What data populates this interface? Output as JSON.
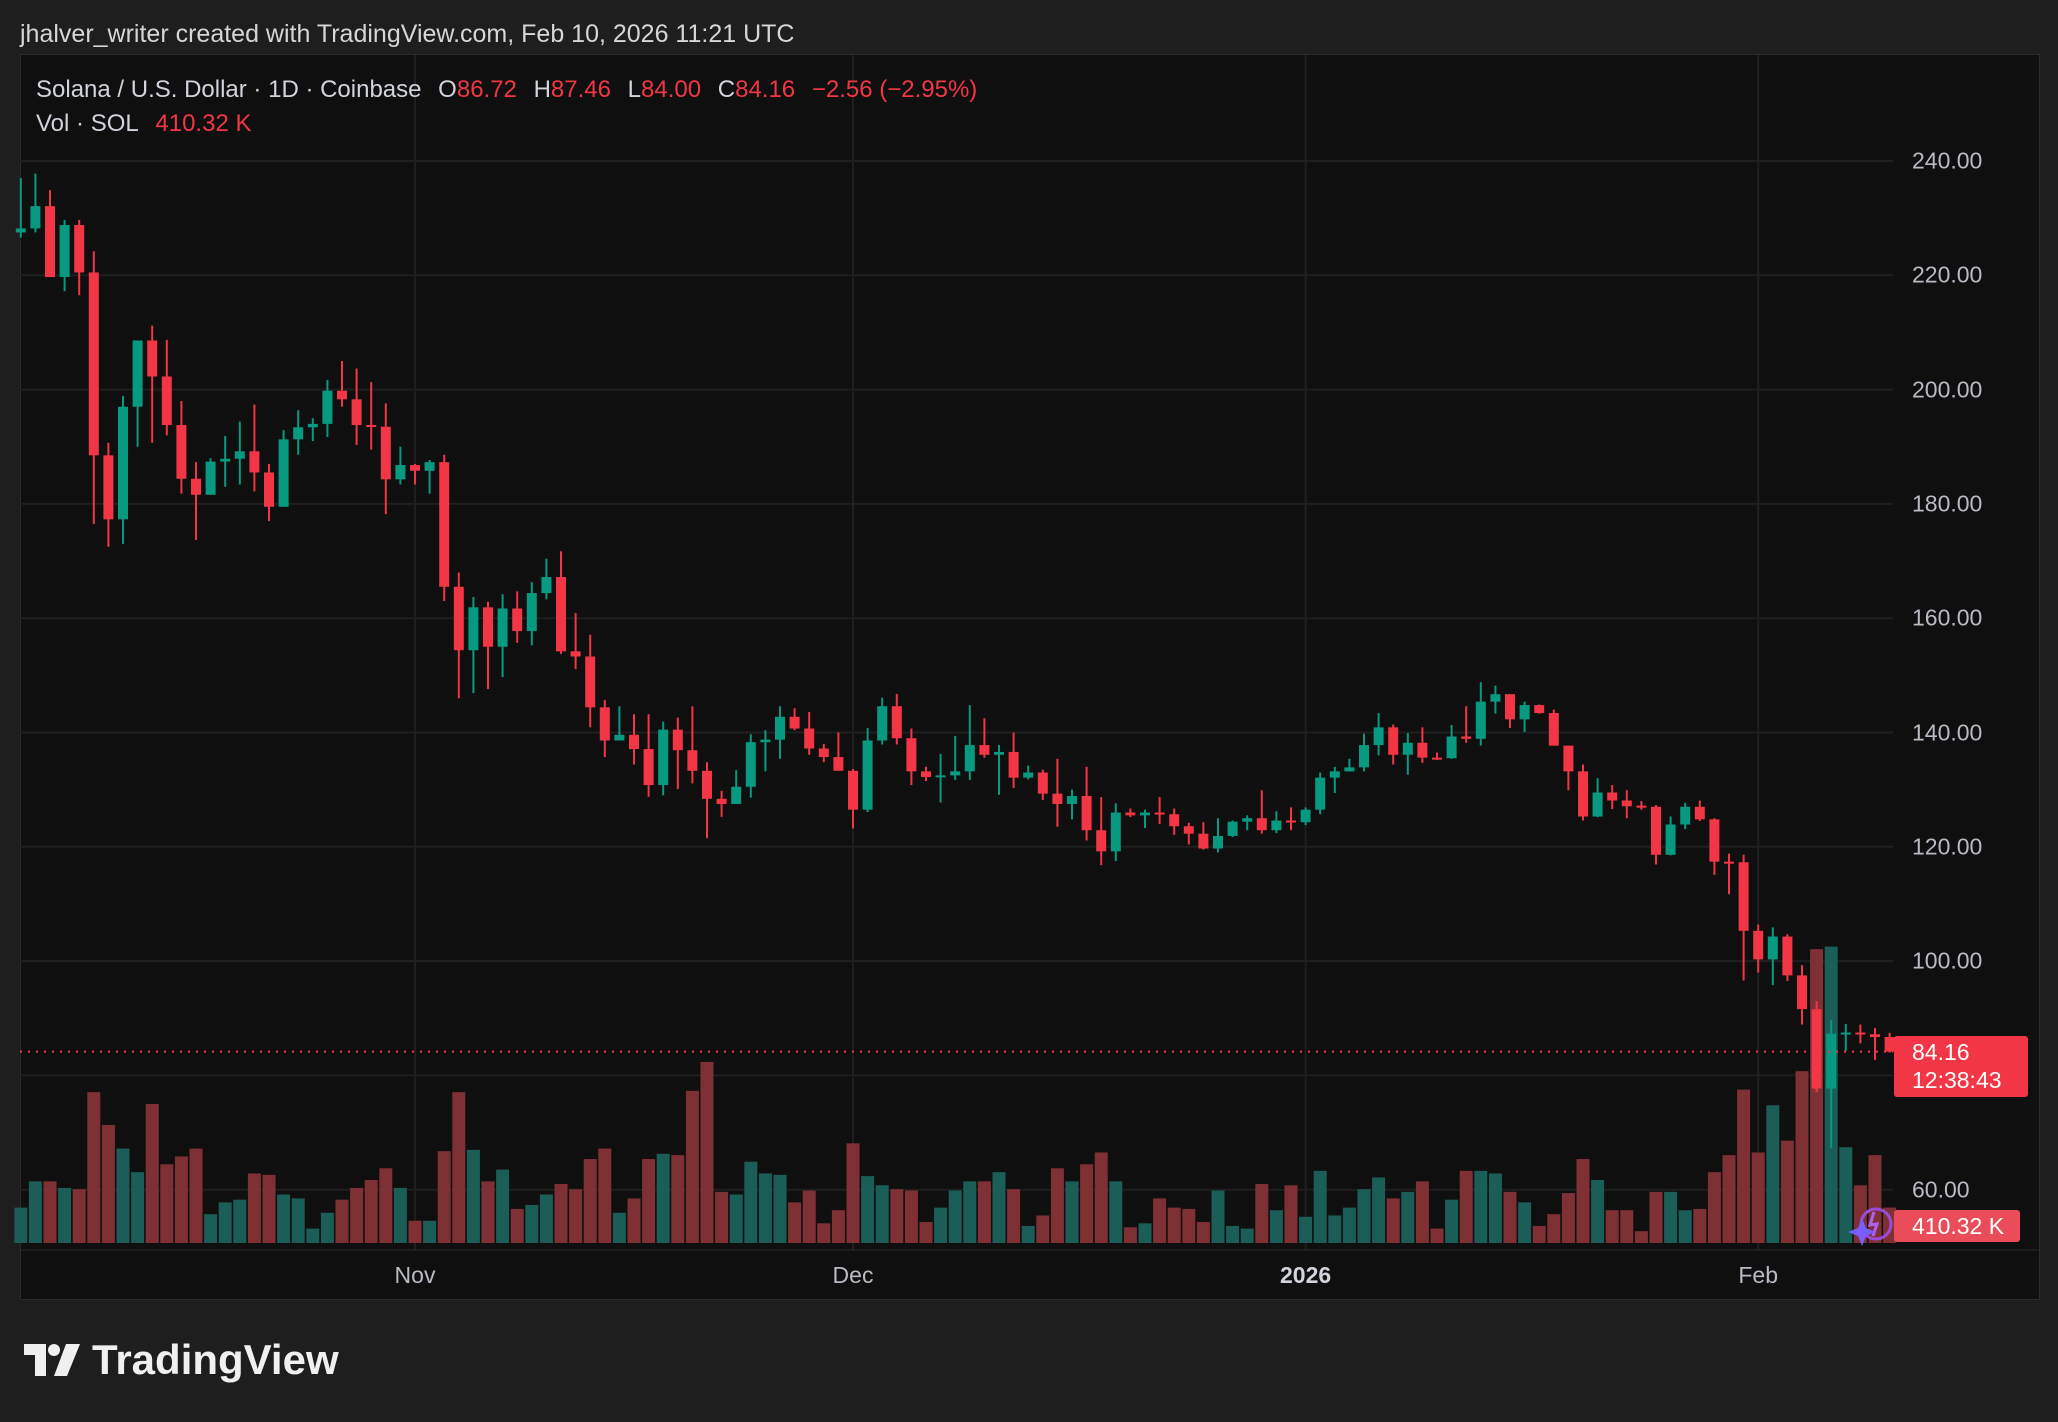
{
  "caption": "jhalver_writer created with TradingView.com, Feb 10, 2026 11:21 UTC",
  "legend": {
    "symbol": "Solana / U.S. Dollar · 1D · Coinbase",
    "open_label": "O",
    "open": "86.72",
    "high_label": "H",
    "high": "87.46",
    "low_label": "L",
    "low": "84.00",
    "close_label": "C",
    "close": "84.16",
    "change": "−2.56 (−2.95%)",
    "vol_label": "Vol · SOL",
    "vol": "410.32 K"
  },
  "price_box": {
    "price": "84.16",
    "countdown": "12:38:43"
  },
  "volume_box": {
    "value": "410.32 K"
  },
  "logo": {
    "text": "TradingView"
  },
  "colors": {
    "up": "#089981",
    "down": "#f23645",
    "vol_up": "#1b5d57",
    "vol_down": "#7f3035",
    "background": "#0f0f0f"
  },
  "chart_data": {
    "type": "candlestick",
    "title": "Solana / U.S. Dollar · 1D · Coinbase",
    "y_ticks": [
      "240.00",
      "220.00",
      "200.00",
      "180.00",
      "160.00",
      "140.00",
      "120.00",
      "100.00",
      "60.00"
    ],
    "grid_prices": [
      240,
      220,
      200,
      180,
      160,
      140,
      120,
      100,
      80,
      60
    ],
    "ylim": [
      60,
      240
    ],
    "x_ticks": [
      {
        "label": "Nov",
        "date": "2025-11-01",
        "bold": false
      },
      {
        "label": "Dec",
        "date": "2025-12-01",
        "bold": false
      },
      {
        "label": "2026",
        "date": "2026-01-01",
        "bold": true
      },
      {
        "label": "Feb",
        "date": "2026-02-01",
        "bold": false
      }
    ],
    "grid": true,
    "last_price": 84.16,
    "fields": [
      "date",
      "open",
      "high",
      "low",
      "close",
      "volume_k"
    ],
    "candles": [
      [
        "2025-10-05",
        227.5,
        237,
        226.6,
        228.2,
        410
      ],
      [
        "2025-10-06",
        228.2,
        237.8,
        227.5,
        232.1,
        714
      ],
      [
        "2025-10-07",
        232.1,
        234.9,
        219.7,
        219.7,
        714
      ],
      [
        "2025-10-08",
        219.7,
        229.7,
        217.2,
        228.8,
        638
      ],
      [
        "2025-10-09",
        228.8,
        229.7,
        216.5,
        220.5,
        623
      ],
      [
        "2025-10-10",
        220.5,
        224.2,
        176.5,
        188.5,
        1748
      ],
      [
        "2025-10-11",
        188.5,
        190.7,
        172.5,
        177.3,
        1368
      ],
      [
        "2025-10-12",
        177.3,
        198.9,
        173,
        197,
        1094
      ],
      [
        "2025-10-13",
        197,
        208.6,
        190,
        208.6,
        821
      ],
      [
        "2025-10-14",
        208.6,
        211.2,
        190.7,
        202.3,
        1611
      ],
      [
        "2025-10-15",
        202.3,
        208.7,
        192,
        193.8,
        912
      ],
      [
        "2025-10-16",
        193.8,
        198,
        181.8,
        184.4,
        1003
      ],
      [
        "2025-10-17",
        184.4,
        187.3,
        173.7,
        181.6,
        1094
      ],
      [
        "2025-10-18",
        181.6,
        188,
        181.6,
        187.4,
        334
      ],
      [
        "2025-10-19",
        187.4,
        191.9,
        183,
        187.9,
        471
      ],
      [
        "2025-10-20",
        187.9,
        194.4,
        183.4,
        189.2,
        502
      ],
      [
        "2025-10-21",
        189.2,
        197.4,
        182.2,
        185.5,
        806
      ],
      [
        "2025-10-22",
        185.5,
        187,
        177,
        179.5,
        790
      ],
      [
        "2025-10-23",
        179.5,
        192.9,
        179.5,
        191.3,
        562
      ],
      [
        "2025-10-24",
        191.3,
        196.4,
        188.6,
        193.4,
        517
      ],
      [
        "2025-10-25",
        193.4,
        195,
        191,
        194,
        167
      ],
      [
        "2025-10-26",
        194,
        201.7,
        191.7,
        199.8,
        350
      ],
      [
        "2025-10-27",
        199.8,
        205,
        197,
        198.3,
        502
      ],
      [
        "2025-10-28",
        198.3,
        203.7,
        190.3,
        193.8,
        638
      ],
      [
        "2025-10-29",
        193.8,
        201.3,
        189.5,
        193.5,
        730
      ],
      [
        "2025-10-30",
        193.5,
        197.6,
        178.2,
        184.3,
        866
      ],
      [
        "2025-10-31",
        184.3,
        190,
        183.4,
        186.8,
        638
      ],
      [
        "2025-11-01",
        186.8,
        187,
        183.4,
        185.8,
        258
      ],
      [
        "2025-11-02",
        185.8,
        187.7,
        181.8,
        187.3,
        258
      ],
      [
        "2025-11-03",
        187.3,
        188.6,
        163,
        165.5,
        1064
      ],
      [
        "2025-11-04",
        165.5,
        168,
        146,
        154.4,
        1748
      ],
      [
        "2025-11-05",
        154.4,
        163.7,
        146.9,
        161.9,
        1079
      ],
      [
        "2025-11-06",
        161.9,
        162.9,
        147.6,
        155,
        714
      ],
      [
        "2025-11-07",
        155,
        164.2,
        149.7,
        161.7,
        851
      ],
      [
        "2025-11-08",
        161.7,
        164.7,
        155.7,
        157.75,
        395
      ],
      [
        "2025-11-09",
        157.75,
        166.3,
        155.25,
        164.4,
        441
      ],
      [
        "2025-11-10",
        164.4,
        170.4,
        163.3,
        167.2,
        562
      ],
      [
        "2025-11-11",
        167.2,
        171.7,
        153.75,
        154.2,
        684
      ],
      [
        "2025-11-12",
        154.2,
        160.9,
        151.1,
        153.3,
        623
      ],
      [
        "2025-11-13",
        153.3,
        157.1,
        140.9,
        144.4,
        973
      ],
      [
        "2025-11-14",
        144.4,
        145.7,
        135.7,
        138.6,
        1094
      ],
      [
        "2025-11-15",
        138.6,
        144.6,
        138.6,
        139.6,
        350
      ],
      [
        "2025-11-16",
        139.6,
        143.2,
        134.4,
        137.1,
        517
      ],
      [
        "2025-11-17",
        137.1,
        143.2,
        128.75,
        130.8,
        973
      ],
      [
        "2025-11-18",
        130.8,
        141.9,
        129,
        140.5,
        1034
      ],
      [
        "2025-11-19",
        140.5,
        142.6,
        130.1,
        136.9,
        1018
      ],
      [
        "2025-11-20",
        136.9,
        144.6,
        131.1,
        133.3,
        1763
      ],
      [
        "2025-11-21",
        133.3,
        134.8,
        121.5,
        128.4,
        2098
      ],
      [
        "2025-11-22",
        128.4,
        129.8,
        125.25,
        127.5,
        593
      ],
      [
        "2025-11-23",
        127.5,
        133.4,
        127.5,
        130.5,
        562
      ],
      [
        "2025-11-24",
        130.5,
        139.7,
        128.6,
        138.3,
        942
      ],
      [
        "2025-11-25",
        138.3,
        140.4,
        133.2,
        138.75,
        806
      ],
      [
        "2025-11-26",
        138.75,
        144.6,
        135.4,
        142.75,
        790
      ],
      [
        "2025-11-27",
        142.75,
        144.25,
        140.4,
        140.7,
        471
      ],
      [
        "2025-11-28",
        140.7,
        143.6,
        136.1,
        137.2,
        608
      ],
      [
        "2025-11-29",
        137.2,
        138,
        134.8,
        135.7,
        228
      ],
      [
        "2025-11-30",
        135.7,
        140,
        133.3,
        133.3,
        380
      ],
      [
        "2025-12-01",
        133.3,
        133.6,
        123.2,
        126.5,
        1155
      ],
      [
        "2025-12-02",
        126.5,
        140.8,
        126.1,
        138.6,
        775
      ],
      [
        "2025-12-03",
        138.6,
        146.1,
        137.9,
        144.6,
        669
      ],
      [
        "2025-12-04",
        144.6,
        146.75,
        137.9,
        139,
        623
      ],
      [
        "2025-12-05",
        139,
        140.7,
        130.8,
        133.2,
        608
      ],
      [
        "2025-12-06",
        133.2,
        134,
        131.5,
        132.2,
        243
      ],
      [
        "2025-12-07",
        132.2,
        136.25,
        127.75,
        132.5,
        410
      ],
      [
        "2025-12-08",
        132.5,
        139.4,
        131.7,
        133.2,
        608
      ],
      [
        "2025-12-09",
        133.2,
        144.8,
        131.7,
        137.8,
        714
      ],
      [
        "2025-12-10",
        137.8,
        142.5,
        135.6,
        136.1,
        714
      ],
      [
        "2025-12-11",
        136.1,
        137.8,
        129.1,
        136.6,
        821
      ],
      [
        "2025-12-12",
        136.6,
        140,
        130.3,
        132.1,
        623
      ],
      [
        "2025-12-13",
        132.1,
        134.2,
        131.8,
        133,
        198
      ],
      [
        "2025-12-14",
        133,
        133.5,
        128.2,
        129.3,
        319
      ],
      [
        "2025-12-15",
        129.3,
        135.4,
        123.5,
        127.5,
        866
      ],
      [
        "2025-12-16",
        127.5,
        130,
        124.8,
        128.9,
        714
      ],
      [
        "2025-12-17",
        128.9,
        134,
        121.1,
        122.9,
        912
      ],
      [
        "2025-12-18",
        122.9,
        128.7,
        116.8,
        119.2,
        1049
      ],
      [
        "2025-12-19",
        119.2,
        127.6,
        117.5,
        126,
        714
      ],
      [
        "2025-12-20",
        126,
        126.7,
        125.2,
        125.5,
        182
      ],
      [
        "2025-12-21",
        125.5,
        126.5,
        123.3,
        126,
        228
      ],
      [
        "2025-12-22",
        126,
        128.7,
        124,
        125.7,
        517
      ],
      [
        "2025-12-23",
        125.7,
        126.7,
        122.1,
        123.6,
        410
      ],
      [
        "2025-12-24",
        123.6,
        124.2,
        120.4,
        122.3,
        395
      ],
      [
        "2025-12-25",
        122.3,
        124.3,
        119.5,
        119.7,
        243
      ],
      [
        "2025-12-26",
        119.7,
        125,
        119,
        121.9,
        608
      ],
      [
        "2025-12-27",
        121.9,
        124.6,
        121.7,
        124.4,
        198
      ],
      [
        "2025-12-28",
        124.4,
        125.5,
        122.9,
        125,
        167
      ],
      [
        "2025-12-29",
        125,
        129.9,
        122.3,
        122.9,
        684
      ],
      [
        "2025-12-30",
        122.9,
        126.2,
        122.4,
        124.6,
        380
      ],
      [
        "2025-12-31",
        124.6,
        126.9,
        122.9,
        124.3,
        669
      ],
      [
        "2026-01-01",
        124.3,
        126.9,
        123.8,
        126.5,
        304
      ],
      [
        "2026-01-02",
        126.5,
        133,
        125.7,
        132.1,
        836
      ],
      [
        "2026-01-03",
        132.1,
        134,
        129.4,
        133.2,
        319
      ],
      [
        "2026-01-04",
        133.2,
        135.4,
        133.2,
        133.9,
        410
      ],
      [
        "2026-01-05",
        133.9,
        139.8,
        133.2,
        137.8,
        623
      ],
      [
        "2026-01-06",
        137.8,
        143.4,
        136,
        140.9,
        760
      ],
      [
        "2026-01-07",
        140.9,
        141.4,
        134.4,
        136.1,
        517
      ],
      [
        "2026-01-08",
        136.1,
        139.9,
        132.6,
        138.2,
        593
      ],
      [
        "2026-01-09",
        138.2,
        140.9,
        134.7,
        135.6,
        714
      ],
      [
        "2026-01-10",
        135.6,
        136.5,
        135.2,
        135.5,
        167
      ],
      [
        "2026-01-11",
        135.5,
        141.3,
        135.4,
        139.3,
        502
      ],
      [
        "2026-01-12",
        139.3,
        144.6,
        138.2,
        138.9,
        836
      ],
      [
        "2026-01-13",
        138.9,
        148.8,
        137.7,
        145.4,
        836
      ],
      [
        "2026-01-14",
        145.4,
        148.2,
        143.3,
        146.7,
        806
      ],
      [
        "2026-01-15",
        146.7,
        146.7,
        140.8,
        142.3,
        593
      ],
      [
        "2026-01-16",
        142.3,
        145.4,
        140.1,
        144.8,
        471
      ],
      [
        "2026-01-17",
        144.8,
        144.9,
        143.3,
        143.4,
        198
      ],
      [
        "2026-01-18",
        143.4,
        144,
        137.7,
        137.7,
        334
      ],
      [
        "2026-01-19",
        137.7,
        137.7,
        129.9,
        133.2,
        578
      ],
      [
        "2026-01-20",
        133.2,
        134.4,
        124.6,
        125.3,
        973
      ],
      [
        "2026-01-21",
        125.3,
        132,
        125.2,
        129.5,
        730
      ],
      [
        "2026-01-22",
        129.5,
        130.8,
        126.6,
        128.1,
        380
      ],
      [
        "2026-01-23",
        128.1,
        129.9,
        125,
        127.1,
        380
      ],
      [
        "2026-01-24",
        127.2,
        128,
        126.5,
        127,
        137
      ],
      [
        "2026-01-25",
        127,
        127.3,
        116.9,
        118.6,
        593
      ],
      [
        "2026-01-26",
        118.6,
        125.3,
        118.5,
        123.9,
        593
      ],
      [
        "2026-01-27",
        123.9,
        127.7,
        123.1,
        127,
        380
      ],
      [
        "2026-01-28",
        127,
        128.1,
        124.5,
        124.8,
        395
      ],
      [
        "2026-01-29",
        124.8,
        125,
        115.1,
        117.4,
        821
      ],
      [
        "2026-01-30",
        117.4,
        118.8,
        111.7,
        117.3,
        1018
      ],
      [
        "2026-01-31",
        117.3,
        118.6,
        96.6,
        105.3,
        1778
      ],
      [
        "2026-02-01",
        105.3,
        106.4,
        98,
        100.3,
        1049
      ],
      [
        "2026-02-02",
        100.3,
        105.9,
        95.8,
        104.3,
        1596
      ],
      [
        "2026-02-03",
        104.3,
        104.7,
        96.5,
        97.5,
        1186
      ],
      [
        "2026-02-04",
        97.5,
        99.3,
        88.9,
        91.6,
        1991
      ],
      [
        "2026-02-05",
        91.6,
        93,
        77.1,
        77.7,
        3405
      ],
      [
        "2026-02-06",
        77.7,
        89.7,
        67.2,
        87.3,
        3435
      ],
      [
        "2026-02-07",
        87.3,
        89,
        84.3,
        87.5,
        1110
      ],
      [
        "2026-02-08",
        87.5,
        88.9,
        85.6,
        87.2,
        669
      ],
      [
        "2026-02-09",
        87.2,
        88.3,
        82.7,
        86.72,
        1018
      ],
      [
        "2026-02-10",
        86.72,
        87.46,
        84.0,
        84.16,
        410.32
      ]
    ]
  }
}
